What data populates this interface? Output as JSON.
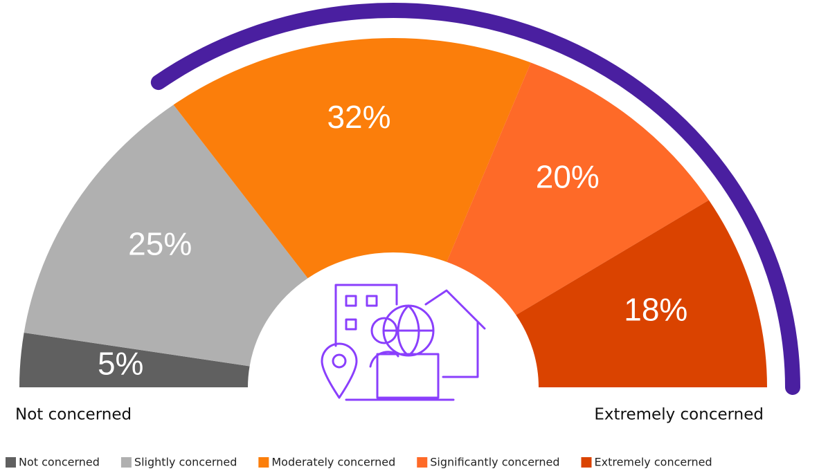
{
  "chart_data": {
    "type": "semi-donut",
    "categories": [
      "Not concerned",
      "Slightly concerned",
      "Moderately concerned",
      "Significantly concerned",
      "Extremely concerned"
    ],
    "values": [
      5,
      25,
      32,
      20,
      18
    ],
    "value_labels": [
      "5%",
      "25%",
      "32%",
      "20%",
      "18%"
    ],
    "colors": [
      "#606060",
      "#b0b0b0",
      "#fb7e0b",
      "#fe6a28",
      "#da4300"
    ],
    "annotations": [
      "Not concerned",
      "Extremely concerned"
    ],
    "legend": "bottom"
  }
}
